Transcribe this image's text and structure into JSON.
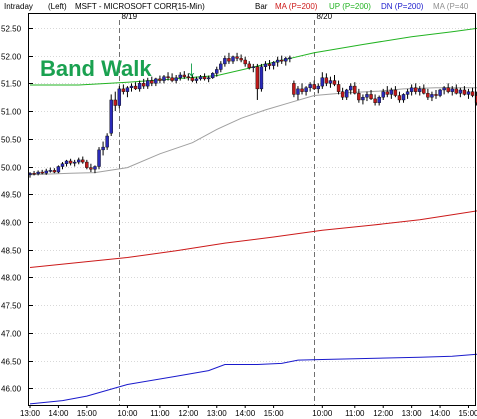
{
  "header": {
    "interval": "Intraday",
    "axis_side": "(Left)",
    "symbol": "MSFT - MICROSOFT CORP",
    "timeframe": "(15-Min)",
    "chart_style": "Bar",
    "ind_ma": "MA (P=200)",
    "ind_up": "UP (P=200)",
    "ind_dn": "DN (P=200)",
    "ind_ma40": "MA (P=40"
  },
  "annotation": {
    "text": "Band Walk",
    "arrow": "↓"
  },
  "colors": {
    "up_band": "#22b322",
    "dn_band": "#1a1acc",
    "ma200": "#cc1a1a",
    "ma40": "#a0a0a0",
    "bull": "#2a2ab8",
    "bear": "#c01a1a",
    "annotation": "#1aa150"
  },
  "chart_data": {
    "type": "candlestick",
    "ylim": [
      45.7,
      52.75
    ],
    "yticks": [
      52.5,
      52.0,
      51.5,
      51.0,
      50.5,
      50.0,
      49.5,
      49.0,
      48.5,
      48.0,
      47.5,
      47.0,
      46.5,
      46.0
    ],
    "date_labels": [
      {
        "label": "8/19",
        "index": 22
      },
      {
        "label": "8/20",
        "index": 70
      }
    ],
    "x_ticks": [
      {
        "label": "13:00",
        "index": 0
      },
      {
        "label": "14:00",
        "index": 7
      },
      {
        "label": "15:00",
        "index": 14
      },
      {
        "label": "10:00",
        "index": 24
      },
      {
        "label": "11:00",
        "index": 32
      },
      {
        "label": "12:00",
        "index": 39
      },
      {
        "label": "13:00",
        "index": 46
      },
      {
        "label": "14:00",
        "index": 53
      },
      {
        "label": "15:00",
        "index": 60
      },
      {
        "label": "10:00",
        "index": 72
      },
      {
        "label": "11:00",
        "index": 80
      },
      {
        "label": "12:00",
        "index": 87
      },
      {
        "label": "13:00",
        "index": 94
      },
      {
        "label": "14:00",
        "index": 101
      },
      {
        "label": "15:00",
        "index": 108
      }
    ],
    "candles": [
      [
        49.85,
        49.9,
        49.8,
        49.88
      ],
      [
        49.88,
        49.92,
        49.84,
        49.87
      ],
      [
        49.87,
        49.93,
        49.84,
        49.9
      ],
      [
        49.9,
        49.94,
        49.86,
        49.88
      ],
      [
        49.88,
        49.96,
        49.85,
        49.92
      ],
      [
        49.92,
        49.98,
        49.89,
        49.93
      ],
      [
        49.93,
        49.97,
        49.88,
        49.9
      ],
      [
        49.9,
        50.02,
        49.88,
        50.0
      ],
      [
        50.0,
        50.08,
        49.95,
        50.05
      ],
      [
        50.05,
        50.12,
        50.0,
        50.1
      ],
      [
        50.1,
        50.14,
        50.02,
        50.06
      ],
      [
        50.06,
        50.12,
        50.0,
        50.08
      ],
      [
        50.08,
        50.16,
        50.04,
        50.12
      ],
      [
        50.12,
        50.18,
        50.05,
        50.08
      ],
      [
        50.08,
        50.12,
        49.95,
        49.98
      ],
      [
        49.98,
        50.05,
        49.9,
        49.95
      ],
      [
        49.95,
        50.02,
        49.88,
        50.0
      ],
      [
        50.0,
        50.35,
        49.95,
        50.3
      ],
      [
        50.3,
        50.45,
        50.2,
        50.35
      ],
      [
        50.35,
        50.6,
        50.3,
        50.55
      ],
      [
        50.6,
        51.3,
        50.55,
        51.2
      ],
      [
        51.2,
        51.35,
        51.0,
        51.1
      ],
      [
        51.1,
        51.45,
        51.05,
        51.4
      ],
      [
        51.4,
        51.48,
        51.3,
        51.35
      ],
      [
        51.35,
        51.45,
        51.25,
        51.42
      ],
      [
        51.42,
        51.5,
        51.35,
        51.45
      ],
      [
        51.45,
        51.52,
        51.38,
        51.4
      ],
      [
        51.4,
        51.55,
        51.35,
        51.5
      ],
      [
        51.5,
        51.58,
        51.4,
        51.45
      ],
      [
        51.45,
        51.6,
        51.4,
        51.55
      ],
      [
        51.55,
        51.62,
        51.45,
        51.5
      ],
      [
        51.5,
        51.6,
        51.45,
        51.58
      ],
      [
        51.58,
        51.64,
        51.5,
        51.55
      ],
      [
        51.55,
        51.65,
        51.5,
        51.62
      ],
      [
        51.62,
        51.7,
        51.55,
        51.6
      ],
      [
        51.6,
        51.68,
        51.52,
        51.55
      ],
      [
        51.55,
        51.65,
        51.5,
        51.6
      ],
      [
        51.6,
        51.7,
        51.55,
        51.65
      ],
      [
        51.65,
        51.72,
        51.58,
        51.62
      ],
      [
        51.62,
        51.68,
        51.55,
        51.6
      ],
      [
        51.6,
        51.66,
        51.52,
        51.55
      ],
      [
        51.55,
        51.62,
        51.5,
        51.58
      ],
      [
        51.58,
        51.65,
        51.55,
        51.62
      ],
      [
        51.62,
        51.68,
        51.55,
        51.58
      ],
      [
        51.58,
        51.64,
        51.52,
        51.6
      ],
      [
        51.6,
        51.7,
        51.58,
        51.68
      ],
      [
        51.68,
        51.8,
        51.62,
        51.75
      ],
      [
        51.75,
        51.9,
        51.7,
        51.85
      ],
      [
        51.85,
        52.0,
        51.8,
        51.95
      ],
      [
        51.95,
        52.05,
        51.85,
        51.9
      ],
      [
        51.9,
        52.0,
        51.85,
        51.98
      ],
      [
        51.98,
        52.05,
        51.9,
        51.95
      ],
      [
        51.95,
        52.02,
        51.88,
        51.92
      ],
      [
        51.92,
        51.98,
        51.8,
        51.85
      ],
      [
        51.85,
        51.9,
        51.75,
        51.78
      ],
      [
        51.78,
        51.85,
        51.7,
        51.8
      ],
      [
        51.8,
        51.85,
        51.2,
        51.4
      ],
      [
        51.4,
        51.85,
        51.35,
        51.8
      ],
      [
        51.8,
        51.9,
        51.72,
        51.85
      ],
      [
        51.85,
        51.92,
        51.75,
        51.82
      ],
      [
        51.82,
        51.9,
        51.75,
        51.88
      ],
      [
        51.88,
        51.98,
        51.8,
        51.92
      ],
      [
        51.92,
        52.0,
        51.85,
        51.9
      ],
      [
        51.9,
        51.98,
        51.82,
        51.95
      ],
      [
        51.95,
        52.0,
        51.88,
        51.96
      ],
      [
        51.5,
        51.55,
        51.25,
        51.3
      ],
      [
        51.3,
        51.45,
        51.2,
        51.4
      ],
      [
        51.4,
        51.5,
        51.3,
        51.35
      ],
      [
        51.35,
        51.45,
        51.28,
        51.42
      ],
      [
        51.42,
        51.52,
        51.35,
        51.48
      ],
      [
        51.48,
        51.55,
        51.38,
        51.4
      ],
      [
        51.4,
        51.5,
        51.32,
        51.45
      ],
      [
        51.45,
        51.7,
        51.4,
        51.6
      ],
      [
        51.6,
        51.68,
        51.45,
        51.5
      ],
      [
        51.5,
        51.62,
        51.42,
        51.55
      ],
      [
        51.55,
        51.65,
        51.45,
        51.48
      ],
      [
        51.48,
        51.55,
        51.3,
        51.35
      ],
      [
        51.35,
        51.42,
        51.2,
        51.25
      ],
      [
        51.25,
        51.4,
        51.2,
        51.38
      ],
      [
        51.38,
        51.5,
        51.3,
        51.45
      ],
      [
        51.45,
        51.52,
        51.3,
        51.32
      ],
      [
        51.32,
        51.4,
        51.15,
        51.2
      ],
      [
        51.2,
        51.3,
        51.12,
        51.25
      ],
      [
        51.25,
        51.35,
        51.18,
        51.3
      ],
      [
        51.3,
        51.38,
        51.2,
        51.22
      ],
      [
        51.22,
        51.3,
        51.1,
        51.15
      ],
      [
        51.15,
        51.28,
        51.1,
        51.25
      ],
      [
        51.25,
        51.4,
        51.2,
        51.35
      ],
      [
        51.35,
        51.45,
        51.25,
        51.3
      ],
      [
        51.3,
        51.42,
        51.22,
        51.38
      ],
      [
        51.38,
        51.45,
        51.25,
        51.28
      ],
      [
        51.28,
        51.35,
        51.15,
        51.2
      ],
      [
        51.2,
        51.32,
        51.15,
        51.3
      ],
      [
        51.3,
        51.4,
        51.22,
        51.35
      ],
      [
        51.35,
        51.48,
        51.28,
        51.42
      ],
      [
        51.42,
        51.5,
        51.3,
        51.35
      ],
      [
        51.35,
        51.45,
        51.28,
        51.4
      ],
      [
        51.4,
        51.48,
        51.3,
        51.32
      ],
      [
        51.32,
        51.4,
        51.2,
        51.25
      ],
      [
        51.25,
        51.35,
        51.18,
        51.3
      ],
      [
        51.3,
        51.38,
        51.22,
        51.28
      ],
      [
        51.28,
        51.4,
        51.25,
        51.38
      ],
      [
        51.38,
        51.45,
        51.3,
        51.42
      ],
      [
        51.42,
        51.5,
        51.32,
        51.35
      ],
      [
        51.35,
        51.45,
        51.28,
        51.4
      ],
      [
        51.4,
        51.48,
        51.3,
        51.32
      ],
      [
        51.32,
        51.42,
        51.25,
        51.38
      ],
      [
        51.38,
        51.45,
        51.28,
        51.3
      ],
      [
        51.3,
        51.4,
        51.22,
        51.35
      ],
      [
        51.35,
        51.42,
        51.25,
        51.28
      ],
      [
        51.28,
        51.35,
        51.1,
        51.15
      ]
    ],
    "up_band": [
      [
        0,
        51.47
      ],
      [
        12,
        51.47
      ],
      [
        17,
        51.49
      ],
      [
        24,
        51.52
      ],
      [
        34,
        51.57
      ],
      [
        42,
        51.62
      ],
      [
        46,
        51.64
      ],
      [
        52,
        51.74
      ],
      [
        60,
        51.88
      ],
      [
        70,
        52.05
      ],
      [
        82,
        52.2
      ],
      [
        94,
        52.34
      ],
      [
        104,
        52.43
      ],
      [
        111,
        52.5
      ]
    ],
    "ma200": [
      [
        0,
        48.18
      ],
      [
        12,
        48.27
      ],
      [
        24,
        48.36
      ],
      [
        36,
        48.48
      ],
      [
        48,
        48.62
      ],
      [
        60,
        48.73
      ],
      [
        72,
        48.85
      ],
      [
        84,
        48.94
      ],
      [
        96,
        49.04
      ],
      [
        104,
        49.13
      ],
      [
        111,
        49.21
      ]
    ],
    "dn_band": [
      [
        0,
        45.72
      ],
      [
        8,
        45.78
      ],
      [
        14,
        45.86
      ],
      [
        24,
        46.07
      ],
      [
        36,
        46.22
      ],
      [
        44,
        46.32
      ],
      [
        48,
        46.43
      ],
      [
        56,
        46.43
      ],
      [
        62,
        46.45
      ],
      [
        66,
        46.51
      ],
      [
        72,
        46.52
      ],
      [
        84,
        46.54
      ],
      [
        96,
        46.56
      ],
      [
        104,
        46.58
      ],
      [
        111,
        46.62
      ]
    ],
    "ma40": [
      [
        0,
        49.85
      ],
      [
        10,
        49.88
      ],
      [
        16,
        49.89
      ],
      [
        24,
        49.98
      ],
      [
        32,
        50.23
      ],
      [
        40,
        50.43
      ],
      [
        46,
        50.67
      ],
      [
        52,
        50.87
      ],
      [
        58,
        51.02
      ],
      [
        64,
        51.15
      ],
      [
        70,
        51.28
      ],
      [
        78,
        51.33
      ],
      [
        86,
        51.36
      ],
      [
        92,
        51.4
      ],
      [
        100,
        51.42
      ],
      [
        111,
        51.42
      ]
    ]
  }
}
